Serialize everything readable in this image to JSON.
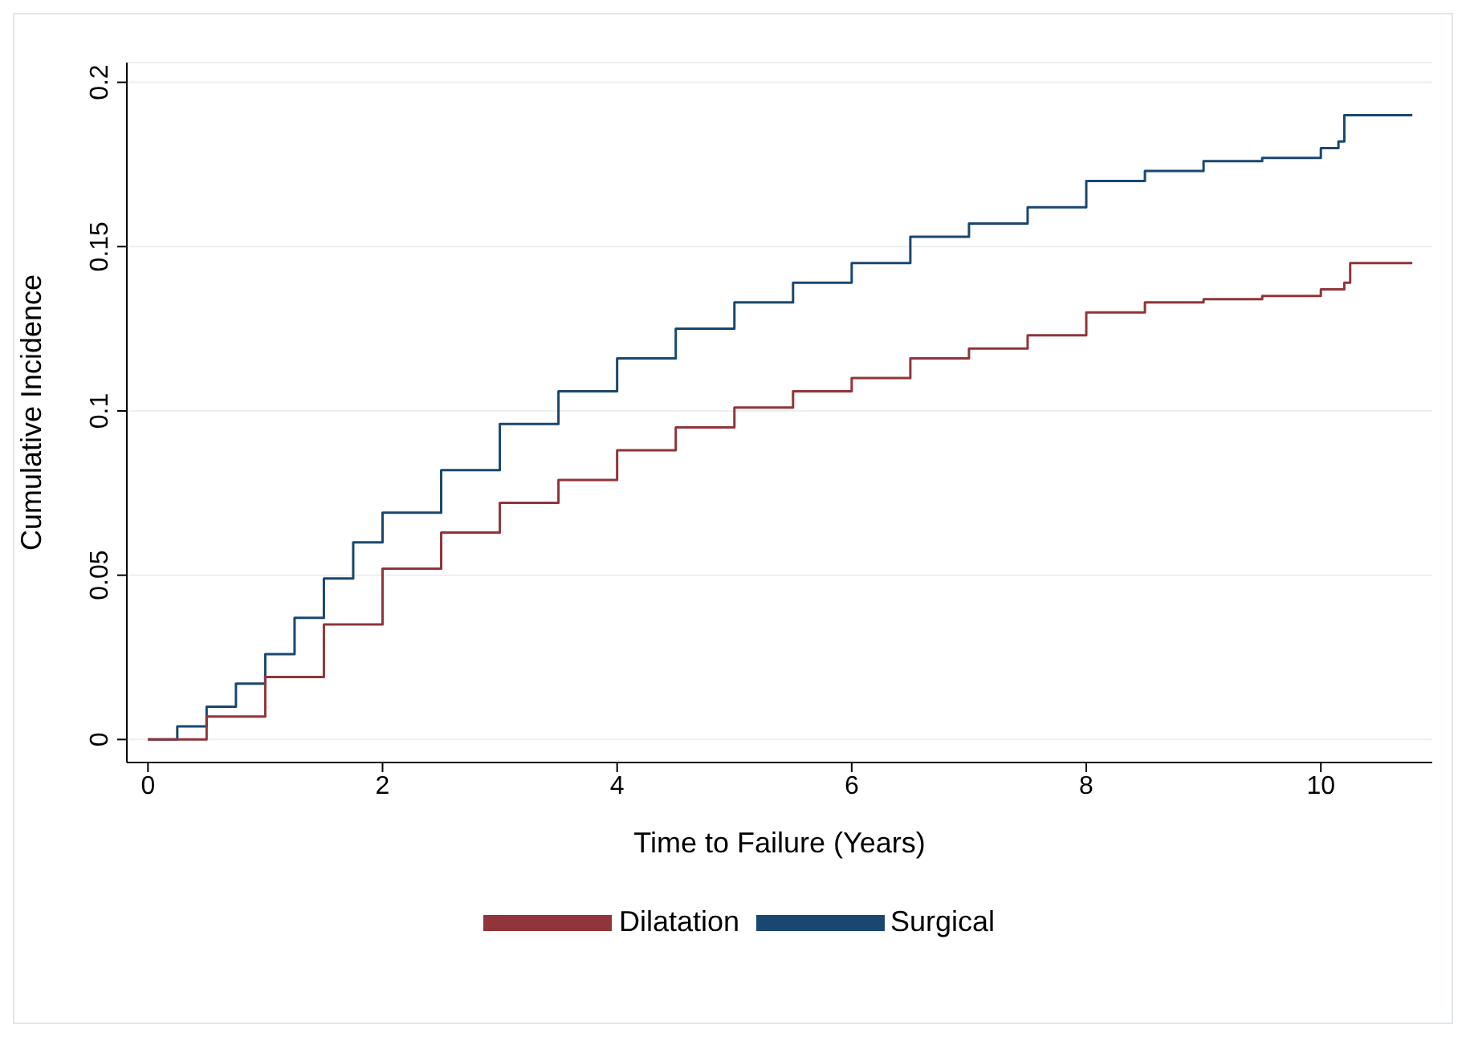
{
  "chart_data": {
    "type": "step",
    "xlabel": "Time to Failure (Years)",
    "ylabel": "Cumulative Incidence",
    "xlim": [
      -0.18,
      10.95
    ],
    "xticks": [
      0,
      2,
      4,
      6,
      8,
      10
    ],
    "ylim": [
      -0.007,
      0.206
    ],
    "yticks": [
      0,
      0.05,
      0.1,
      0.15,
      0.2
    ],
    "grid": "y",
    "legend": "bottom",
    "marker": "none",
    "line_style": "solid",
    "series": [
      {
        "name": "Surgical",
        "color": "#1a476f",
        "x": [
          0,
          0.25,
          0.5,
          0.75,
          1,
          1.25,
          1.5,
          1.75,
          2,
          2.5,
          3,
          3.5,
          4,
          4.5,
          5,
          5.5,
          6,
          6.5,
          7,
          7.5,
          8,
          8.5,
          9,
          9.5,
          10,
          10.15,
          10.2,
          10.78
        ],
        "values": [
          0,
          0.004,
          0.01,
          0.017,
          0.026,
          0.037,
          0.049,
          0.06,
          0.069,
          0.082,
          0.096,
          0.106,
          0.116,
          0.125,
          0.133,
          0.139,
          0.145,
          0.153,
          0.157,
          0.162,
          0.17,
          0.173,
          0.176,
          0.177,
          0.18,
          0.182,
          0.19,
          0.19
        ]
      },
      {
        "name": "Dilatation",
        "color": "#90353b",
        "x": [
          0,
          0.5,
          1,
          1.5,
          2,
          2.5,
          3,
          3.5,
          4,
          4.5,
          5,
          5.5,
          6,
          6.5,
          7,
          7.5,
          8,
          8.5,
          9,
          9.5,
          10,
          10.2,
          10.25,
          10.78
        ],
        "values": [
          0,
          0.007,
          0.019,
          0.035,
          0.052,
          0.063,
          0.072,
          0.079,
          0.088,
          0.095,
          0.101,
          0.106,
          0.11,
          0.116,
          0.119,
          0.123,
          0.13,
          0.133,
          0.134,
          0.135,
          0.137,
          0.139,
          0.145,
          0.145
        ]
      }
    ]
  }
}
